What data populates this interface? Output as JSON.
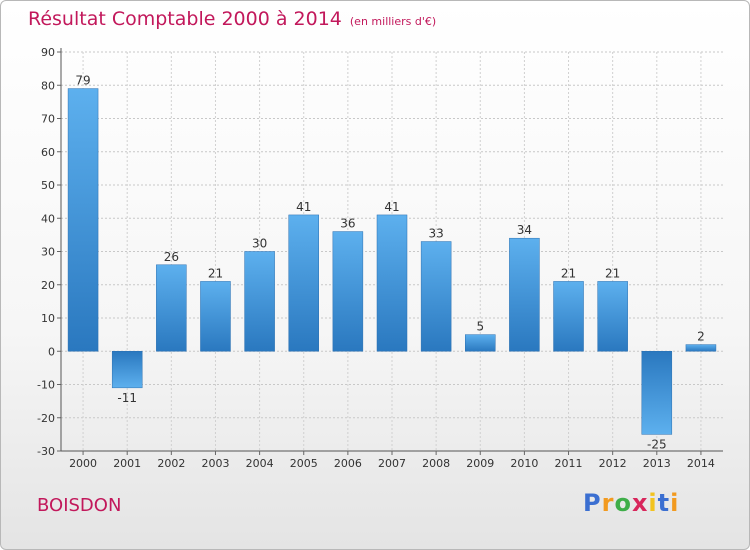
{
  "title": "Résultat Comptable 2000 à 2014",
  "title_unit": "(en milliers d'€)",
  "place_name": "BOISDON",
  "logo": {
    "letters": [
      "P",
      "r",
      "o",
      "x",
      "i",
      "t",
      "i"
    ],
    "colors": [
      "#3b6fd1",
      "#f29a1f",
      "#3fae49",
      "#d8265b",
      "#f2c31f",
      "#3b6fd1",
      "#f29a1f"
    ]
  },
  "chart_data": {
    "type": "bar",
    "title": "Résultat Comptable 2000 à 2014",
    "categories": [
      "2000",
      "2001",
      "2002",
      "2003",
      "2004",
      "2005",
      "2006",
      "2007",
      "2008",
      "2009",
      "2010",
      "2011",
      "2012",
      "2013",
      "2014"
    ],
    "values": [
      79,
      -11,
      26,
      21,
      30,
      41,
      36,
      41,
      33,
      5,
      34,
      21,
      21,
      -25,
      2
    ],
    "ylim": [
      -30,
      90
    ],
    "yticks": [
      -30,
      -20,
      -10,
      0,
      10,
      20,
      30,
      40,
      50,
      60,
      70,
      80,
      90
    ],
    "grid": true,
    "bar_color": "#3d8fd6"
  }
}
